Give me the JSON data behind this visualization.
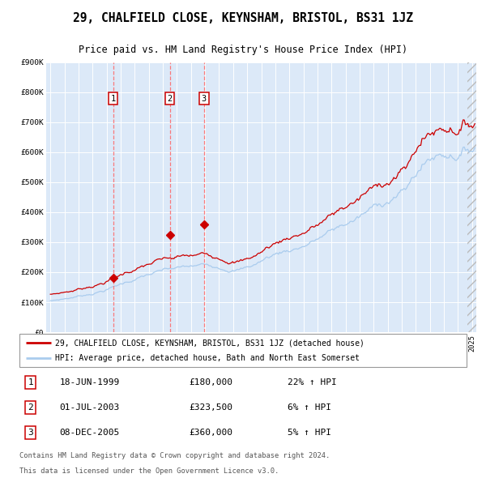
{
  "title": "29, CHALFIELD CLOSE, KEYNSHAM, BRISTOL, BS31 1JZ",
  "subtitle": "Price paid vs. HM Land Registry's House Price Index (HPI)",
  "legend_label_red": "29, CHALFIELD CLOSE, KEYNSHAM, BRISTOL, BS31 1JZ (detached house)",
  "legend_label_blue": "HPI: Average price, detached house, Bath and North East Somerset",
  "footer1": "Contains HM Land Registry data © Crown copyright and database right 2024.",
  "footer2": "This data is licensed under the Open Government Licence v3.0.",
  "transactions": [
    {
      "num": 1,
      "date": "18-JUN-1999",
      "price": 180000,
      "pct": "22%",
      "dir": "↑"
    },
    {
      "num": 2,
      "date": "01-JUL-2003",
      "price": 323500,
      "pct": "6%",
      "dir": "↑"
    },
    {
      "num": 3,
      "date": "08-DEC-2005",
      "price": 360000,
      "pct": "5%",
      "dir": "↑"
    }
  ],
  "transaction_dates_decimal": [
    1999.46,
    2003.5,
    2005.93
  ],
  "transaction_prices": [
    180000,
    323500,
    360000
  ],
  "bg_color": "#dce9f8",
  "red_color": "#cc0000",
  "blue_color": "#aaccee",
  "vline_color": "#ff6666",
  "grid_color": "#ffffff",
  "ylim": [
    0,
    900000
  ],
  "xlim_start": 1994.7,
  "xlim_end": 2025.3,
  "yticks": [
    0,
    100000,
    200000,
    300000,
    400000,
    500000,
    600000,
    700000,
    800000,
    900000
  ],
  "ylabels": [
    "£0",
    "£100K",
    "£200K",
    "£300K",
    "£400K",
    "£500K",
    "£600K",
    "£700K",
    "£800K",
    "£900K"
  ]
}
